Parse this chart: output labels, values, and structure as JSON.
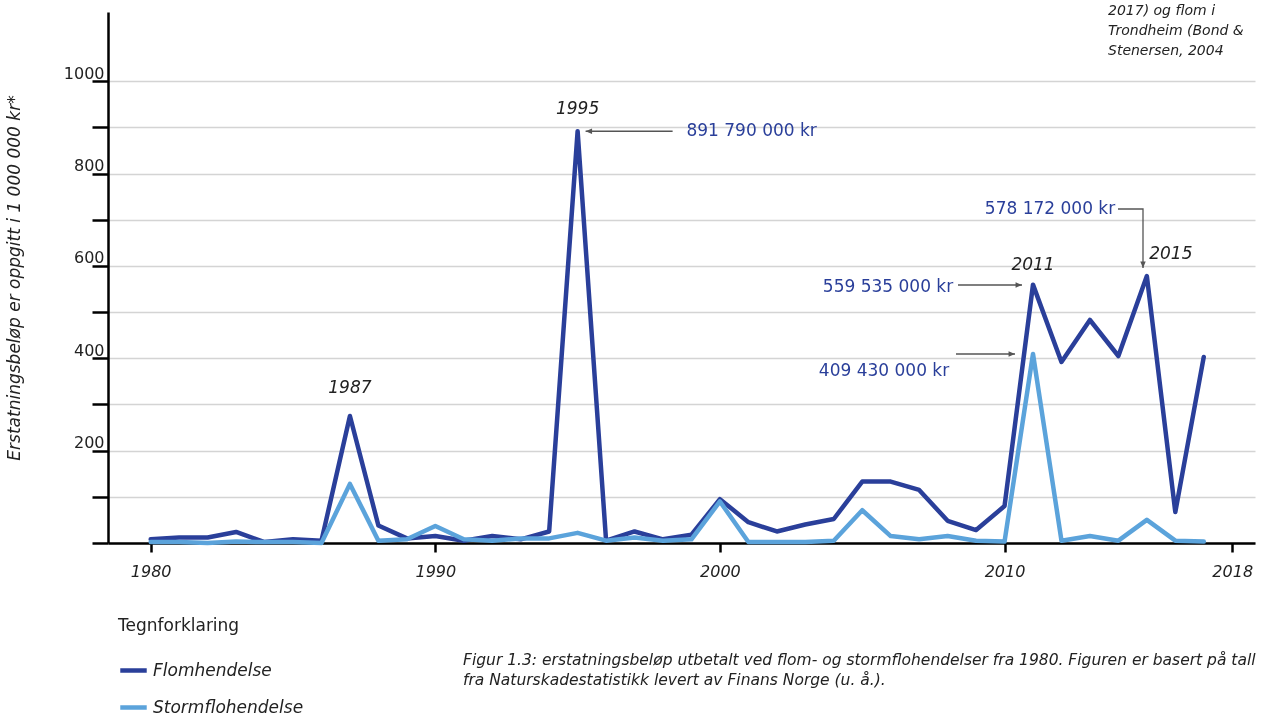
{
  "chart_data": {
    "type": "line",
    "ylabel": "Erstatningsbeløp er oppgitt i 1 000 000 kr*",
    "legend_title": "Tegnforklaring",
    "x": [
      1980,
      1981,
      1982,
      1983,
      1984,
      1985,
      1986,
      1987,
      1988,
      1989,
      1990,
      1991,
      1992,
      1993,
      1994,
      1995,
      1996,
      1997,
      1998,
      1999,
      2000,
      2001,
      2002,
      2003,
      2004,
      2005,
      2006,
      2007,
      2008,
      2009,
      2010,
      2011,
      2012,
      2013,
      2014,
      2015,
      2016,
      2017
    ],
    "series": [
      {
        "name": "Flomhendelse",
        "color": "#2a3f9a",
        "values": [
          8,
          12,
          12,
          24,
          2,
          8,
          5,
          275,
          38,
          10,
          15,
          5,
          15,
          8,
          25,
          891.79,
          5,
          25,
          8,
          18,
          95,
          45,
          25,
          40,
          52,
          133,
          133,
          115,
          48,
          28,
          80,
          559.535,
          392,
          483,
          405,
          578.172,
          67,
          403
        ]
      },
      {
        "name": "Stormflohendelse",
        "color": "#5ba3db",
        "values": [
          2,
          2,
          0,
          3,
          2,
          2,
          0,
          128,
          5,
          8,
          37,
          8,
          5,
          10,
          10,
          22,
          5,
          12,
          5,
          8,
          90,
          2,
          2,
          2,
          5,
          71,
          15,
          8,
          15,
          5,
          3,
          409.43,
          5,
          15,
          5,
          50,
          5,
          3
        ]
      }
    ],
    "xlim": [
      1978.5,
      2018.8
    ],
    "xticks": [
      1980,
      1990,
      2000,
      2010,
      2018
    ],
    "ylim": [
      0,
      1150
    ],
    "yticks": [
      {
        "value": 0,
        "label": null
      },
      {
        "value": 100,
        "label": null
      },
      200,
      {
        "value": 300,
        "label": null
      },
      400,
      {
        "value": 500,
        "label": null
      },
      600,
      {
        "value": 700,
        "label": null
      },
      800,
      {
        "value": 900,
        "label": null
      },
      1000
    ],
    "grid": "y",
    "legend": "bottom left",
    "marker": "none",
    "line_style": "solid",
    "annotations": [
      {
        "text": "1987",
        "x": 1987,
        "y": 275
      },
      {
        "text": "1995",
        "x": 1995,
        "y": 891.79
      },
      {
        "text": "891 790 000 kr",
        "x": 1995,
        "y": 891.79
      },
      {
        "text": "2011",
        "x": 2011,
        "y": 559.535
      },
      {
        "text": "2015",
        "x": 2015,
        "y": 578.172
      },
      "578 172 000 kr",
      "559 535 000 kr",
      "409 430 000 kr",
      "Figur 1.3: erstatningsbeløp utbetalt ved flom- og stormflohendelser fra 1980. Figuren er basert på tall fra Naturskadestatistikk levert av Finans Norge (u. å.).",
      "2017) og flom i Trondheim (Bond & Stenersen, 2004"
    ]
  }
}
